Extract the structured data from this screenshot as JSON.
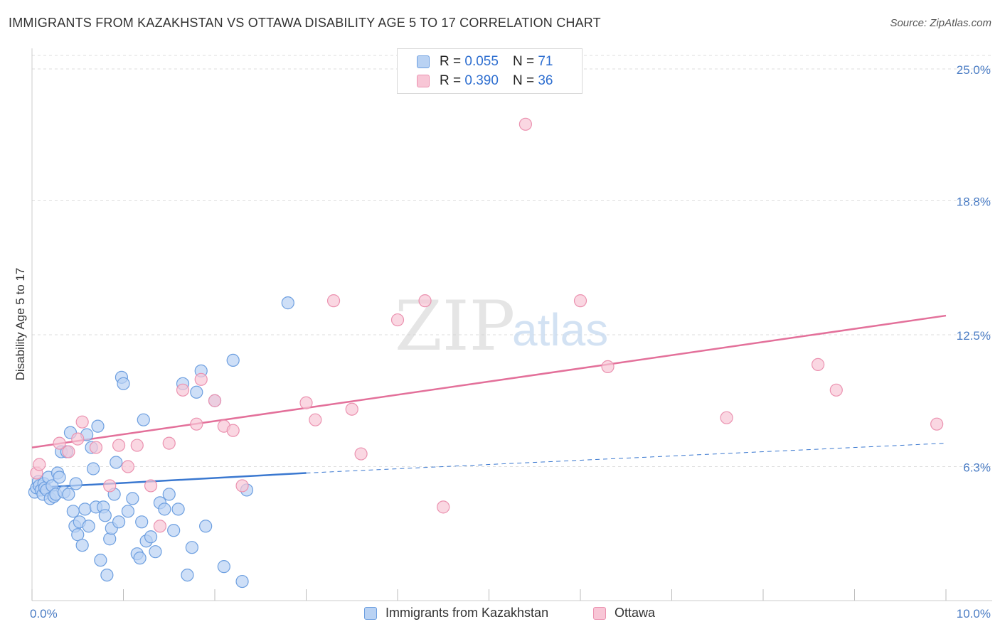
{
  "header": {
    "title": "IMMIGRANTS FROM KAZAKHSTAN VS OTTAWA DISABILITY AGE 5 TO 17 CORRELATION CHART",
    "source": "Source: ZipAtlas.com"
  },
  "watermark": {
    "zip": "ZIP",
    "atlas": "atlas"
  },
  "colors": {
    "blue_fill": "#b9d2f3",
    "blue_stroke": "#6d9fe0",
    "blue_line": "#3a78d0",
    "pink_fill": "#f8c6d6",
    "pink_stroke": "#eb92b0",
    "pink_line": "#e3709a",
    "tick_text": "#4a7cc4",
    "grid": "#dddddd"
  },
  "legend_top": {
    "rows": [
      {
        "r_label": "R =",
        "r_value": "0.055",
        "n_label": "N =",
        "n_value": "71"
      },
      {
        "r_label": "R =",
        "r_value": "0.390",
        "n_label": "N =",
        "n_value": "36"
      }
    ]
  },
  "legend_bottom": {
    "items": [
      "Immigrants from Kazakhstan",
      "Ottawa"
    ]
  },
  "chart_data": {
    "type": "scatter",
    "title": "IMMIGRANTS FROM KAZAKHSTAN VS OTTAWA DISABILITY AGE 5 TO 17 CORRELATION CHART",
    "ylabel": "Disability Age 5 to 17",
    "xlabel": "",
    "xlim": [
      0,
      10
    ],
    "ylim": [
      0,
      25
    ],
    "x_tick_labels": [
      "0.0%",
      "10.0%"
    ],
    "y_tick_labels": [
      "6.3%",
      "12.5%",
      "18.8%",
      "25.0%"
    ],
    "y_ticks": [
      6.3,
      12.5,
      18.8,
      25.0
    ],
    "grid": "horizontal dashed",
    "series": [
      {
        "name": "Immigrants from Kazakhstan",
        "trend": {
          "x0": 0,
          "y0": 5.3,
          "x1": 3.0,
          "y1": 6.0,
          "dashed_to_x": 10,
          "dashed_to_y": 7.4
        },
        "points": [
          [
            0.03,
            5.1
          ],
          [
            0.05,
            5.3
          ],
          [
            0.07,
            5.6
          ],
          [
            0.08,
            5.4
          ],
          [
            0.1,
            5.2
          ],
          [
            0.12,
            5.0
          ],
          [
            0.13,
            5.5
          ],
          [
            0.14,
            5.3
          ],
          [
            0.16,
            5.2
          ],
          [
            0.18,
            5.8
          ],
          [
            0.2,
            4.8
          ],
          [
            0.22,
            5.4
          ],
          [
            0.24,
            4.9
          ],
          [
            0.26,
            5.0
          ],
          [
            0.28,
            6.0
          ],
          [
            0.3,
            5.8
          ],
          [
            0.32,
            7.0
          ],
          [
            0.35,
            5.1
          ],
          [
            0.38,
            7.0
          ],
          [
            0.4,
            5.0
          ],
          [
            0.42,
            7.9
          ],
          [
            0.45,
            4.2
          ],
          [
            0.47,
            3.5
          ],
          [
            0.48,
            5.5
          ],
          [
            0.5,
            3.1
          ],
          [
            0.52,
            3.7
          ],
          [
            0.55,
            2.6
          ],
          [
            0.58,
            4.3
          ],
          [
            0.6,
            7.8
          ],
          [
            0.62,
            3.5
          ],
          [
            0.65,
            7.2
          ],
          [
            0.67,
            6.2
          ],
          [
            0.7,
            4.4
          ],
          [
            0.72,
            8.2
          ],
          [
            0.75,
            1.9
          ],
          [
            0.78,
            4.4
          ],
          [
            0.8,
            4.0
          ],
          [
            0.82,
            1.2
          ],
          [
            0.85,
            2.9
          ],
          [
            0.87,
            3.4
          ],
          [
            0.9,
            5.0
          ],
          [
            0.92,
            6.5
          ],
          [
            0.95,
            3.7
          ],
          [
            0.98,
            10.5
          ],
          [
            1.0,
            10.2
          ],
          [
            1.05,
            4.2
          ],
          [
            1.1,
            4.8
          ],
          [
            1.15,
            2.2
          ],
          [
            1.18,
            2.0
          ],
          [
            1.2,
            3.7
          ],
          [
            1.22,
            8.5
          ],
          [
            1.25,
            2.8
          ],
          [
            1.3,
            3.0
          ],
          [
            1.35,
            2.3
          ],
          [
            1.4,
            4.6
          ],
          [
            1.45,
            4.3
          ],
          [
            1.5,
            5.0
          ],
          [
            1.55,
            3.3
          ],
          [
            1.6,
            4.3
          ],
          [
            1.65,
            10.2
          ],
          [
            1.7,
            1.2
          ],
          [
            1.75,
            2.5
          ],
          [
            1.8,
            9.8
          ],
          [
            1.85,
            10.8
          ],
          [
            1.9,
            3.5
          ],
          [
            2.0,
            9.4
          ],
          [
            2.1,
            1.6
          ],
          [
            2.2,
            11.3
          ],
          [
            2.3,
            0.9
          ],
          [
            2.35,
            5.2
          ],
          [
            2.8,
            14.0
          ]
        ]
      },
      {
        "name": "Ottawa",
        "trend": {
          "x0": 0,
          "y0": 7.2,
          "x1": 10,
          "y1": 13.4
        },
        "points": [
          [
            0.05,
            6.0
          ],
          [
            0.08,
            6.4
          ],
          [
            0.3,
            7.4
          ],
          [
            0.4,
            7.0
          ],
          [
            0.5,
            7.6
          ],
          [
            0.55,
            8.4
          ],
          [
            0.7,
            7.2
          ],
          [
            0.85,
            5.4
          ],
          [
            0.95,
            7.3
          ],
          [
            1.05,
            6.3
          ],
          [
            1.15,
            7.3
          ],
          [
            1.3,
            5.4
          ],
          [
            1.4,
            3.5
          ],
          [
            1.5,
            7.4
          ],
          [
            1.65,
            9.9
          ],
          [
            1.8,
            8.3
          ],
          [
            1.85,
            10.4
          ],
          [
            2.0,
            9.4
          ],
          [
            2.1,
            8.2
          ],
          [
            2.2,
            8.0
          ],
          [
            2.3,
            5.4
          ],
          [
            3.0,
            9.3
          ],
          [
            3.1,
            8.5
          ],
          [
            3.3,
            14.1
          ],
          [
            3.5,
            9.0
          ],
          [
            3.6,
            6.9
          ],
          [
            4.0,
            13.2
          ],
          [
            4.3,
            14.1
          ],
          [
            4.5,
            4.4
          ],
          [
            5.4,
            22.4
          ],
          [
            6.0,
            14.1
          ],
          [
            6.3,
            11.0
          ],
          [
            7.6,
            8.6
          ],
          [
            8.6,
            11.1
          ],
          [
            8.8,
            9.9
          ],
          [
            9.9,
            8.3
          ]
        ]
      }
    ]
  }
}
